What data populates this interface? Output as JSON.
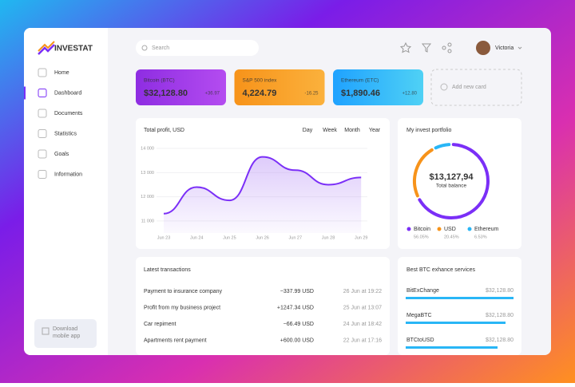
{
  "brand": "INVESTAT",
  "nav": [
    "Home",
    "Dashboard",
    "Documents",
    "Statistics",
    "Goals",
    "Information"
  ],
  "download": "Download mobile app",
  "search": "Search",
  "user": "Victoria",
  "cards": [
    {
      "name": "Bitcoin (BTC)",
      "value": "$32,128.80",
      "change": "+36.97"
    },
    {
      "name": "S&P 500 index",
      "value": "4,224.79",
      "change": "-16.25"
    },
    {
      "name": "Ethereum (ETC)",
      "value": "$1,890.46",
      "change": "+12.80"
    }
  ],
  "add_card": "Add new card",
  "chart_data": [
    {
      "type": "line",
      "title": "Total profit, USD",
      "tabs": [
        "Day",
        "Week",
        "Month",
        "Year"
      ],
      "categories": [
        "Jun 23",
        "Jun 24",
        "Jun 25",
        "Jun 26",
        "Jun 27",
        "Jun 28",
        "Jun 29"
      ],
      "values": [
        11300,
        12400,
        11850,
        13650,
        13100,
        12500,
        12800
      ],
      "ylim": [
        10500,
        14200
      ],
      "yticks": [
        {
          "value": 11000,
          "label": "11 000"
        },
        {
          "value": 12000,
          "label": "12 000"
        },
        {
          "value": 13000,
          "label": "13 000"
        },
        {
          "value": 14000,
          "label": "14 000"
        }
      ],
      "color": "#7b2ff7"
    },
    {
      "type": "pie",
      "title": "My invest portfolio",
      "center_value": "$13,127,94",
      "center_label": "Total balance",
      "categories": [
        "Bitcoin",
        "USD",
        "Ethereum"
      ],
      "values": [
        56.05,
        20.45,
        6.53
      ],
      "value_labels": [
        "56.05%",
        "20.45%",
        "6.53%"
      ],
      "colors": [
        "#7b2ff7",
        "#f7931a",
        "#29b6f6"
      ]
    }
  ],
  "transactions": {
    "title": "Latest transactions",
    "rows": [
      [
        "Payment to insurance company",
        "−337.99 USD",
        "26 Jun at 19:22"
      ],
      [
        "Profit from my business project",
        "+1247.34 USD",
        "25 Jun at 13:07"
      ],
      [
        "Car repiment",
        "−66.49 USD",
        "24 Jun at 18:42"
      ],
      [
        "Apartments rent payment",
        "+600.00 USD",
        "22 Jun at 17:16"
      ]
    ]
  },
  "exchange": {
    "title": "Best BTC exhance services",
    "rows": [
      [
        "BitExChange",
        "$32,128.80"
      ],
      [
        "MegaBTC",
        "$32,128.80"
      ],
      [
        "BTCtoUSD",
        "$32,128.80"
      ]
    ]
  }
}
